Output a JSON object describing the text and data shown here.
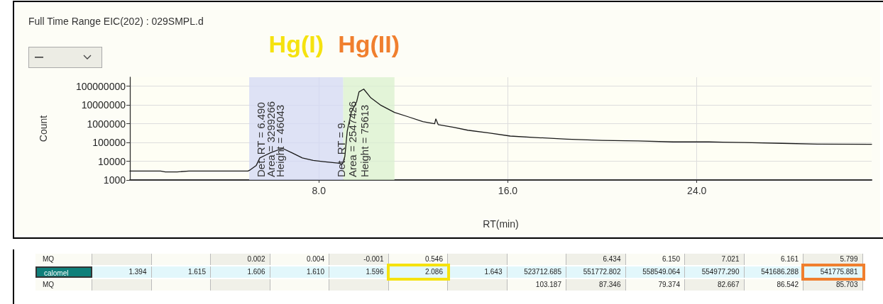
{
  "chart_data": [
    {
      "type": "line",
      "title": "Full Time Range EIC(202) : 029SMPL.d",
      "xlabel": "RT(min)",
      "ylabel": "Count",
      "log": "y",
      "grid": true,
      "marker": "none",
      "line_style": "solid",
      "xlim": [
        0,
        31.4
      ],
      "xticks": [
        {
          "value": 8,
          "label": "8.0"
        },
        {
          "value": 16,
          "label": "16.0"
        },
        {
          "value": 24,
          "label": "24.0"
        }
      ],
      "ylim": [
        1000,
        300000000
      ],
      "yticks": [
        1000,
        10000,
        100000,
        1000000,
        10000000,
        100000000
      ],
      "bands": [
        {
          "axis": "x",
          "from": 5.05,
          "to": 9.03,
          "color": "#d3d8f6"
        },
        {
          "axis": "x",
          "from": 9.03,
          "to": 11.2,
          "color": "#d9f0cf"
        }
      ],
      "annotations": [
        "Hg(I)",
        "Hg(II)",
        "Det. RT = 6.490",
        "Area = 3299266",
        "Height = 46043",
        "Det. RT = 9.",
        "Area = 2547426",
        "Height = 75613"
      ],
      "series": [
        {
          "color": "#1a1a1a",
          "x": [
            0,
            1.3,
            1.5,
            2,
            2.5,
            5,
            5.1,
            5.35,
            5.5,
            5.74,
            5.95,
            6.34,
            6.5,
            6.86,
            7.3,
            7.76,
            8.2,
            8.8,
            9.0,
            9.1,
            9.2,
            9.37,
            9.6,
            9.7,
            9.9,
            10.2,
            10.6,
            11.2,
            11.8,
            12.4,
            12.9,
            12.95,
            13.05,
            13.7,
            14.3,
            15.2,
            16.1,
            17.3,
            18.5,
            20,
            21.5,
            23,
            24.5,
            26,
            27.6,
            29.1,
            31.4
          ],
          "values": [
            3000,
            3000,
            2700,
            2700,
            3000,
            3000,
            3500,
            6000,
            15000,
            21000,
            28000,
            43000,
            46000,
            28000,
            15000,
            11000,
            9500,
            8000,
            7200,
            18000,
            400000,
            4000000,
            15000000,
            50000000,
            70000000,
            24000000,
            10000000,
            4000000,
            2300000,
            1300000,
            1000000,
            1800000,
            900000,
            650000,
            450000,
            320000,
            220000,
            180000,
            150000,
            130000,
            120000,
            107000,
            107000,
            100000,
            90000,
            82000,
            80000
          ]
        }
      ]
    },
    {
      "type": "other",
      "annotations": [
        "MQ",
        null,
        null,
        "0.002",
        "0.004",
        "-0.001",
        "0.546",
        null,
        null,
        "6.434",
        "6.150",
        "7.021",
        "6.161",
        "5.799",
        "calomel",
        "1.394",
        "1.615",
        "1.606",
        "1.610",
        "1.596",
        "2.086",
        "1.643",
        "523712.685",
        "551772.802",
        "558549.064",
        "554977.290",
        "541686.288",
        "541775.881",
        "MQ",
        null,
        null,
        null,
        null,
        null,
        null,
        null,
        "103.187",
        "87.346",
        "79.374",
        "82.667",
        "86.542",
        "85.703"
      ]
    }
  ]
}
